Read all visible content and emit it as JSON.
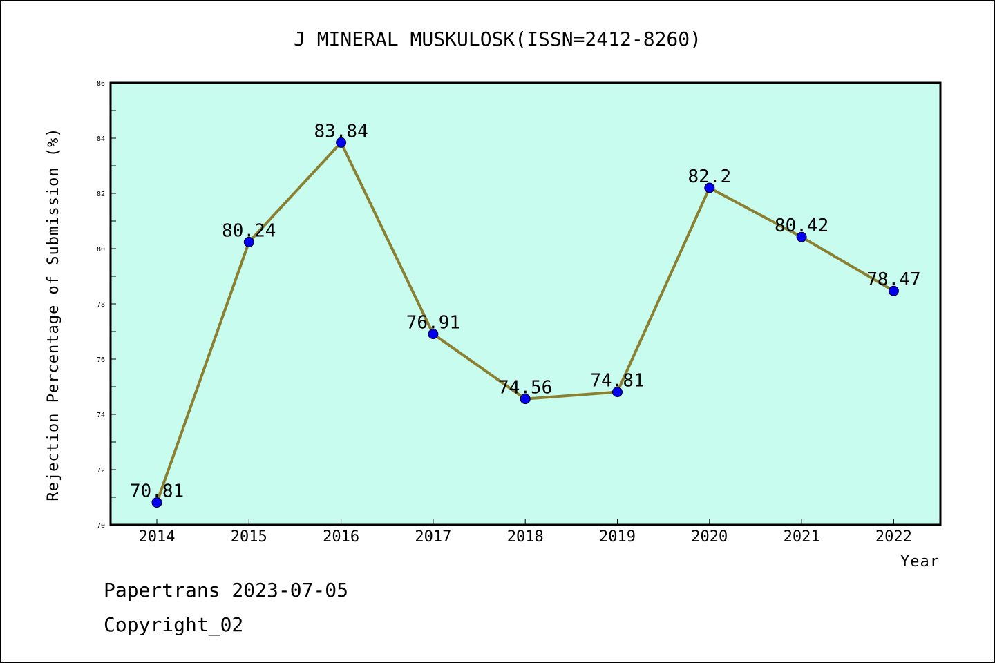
{
  "chart_data": {
    "type": "line",
    "title": "J MINERAL MUSKULOSK(ISSN=2412-8260)",
    "xlabel": "Year",
    "ylabel": "Rejection Percentage of Submission (%)",
    "categories": [
      "2014",
      "2015",
      "2016",
      "2017",
      "2018",
      "2019",
      "2020",
      "2021",
      "2022"
    ],
    "series": [
      {
        "values": [
          70.81,
          80.24,
          83.84,
          76.91,
          74.56,
          74.81,
          82.2,
          80.42,
          78.47
        ],
        "labels": [
          "70.81",
          "80.24",
          "83.84",
          "76.91",
          "74.56",
          "74.81",
          "82.2",
          "80.42",
          "78.47"
        ]
      }
    ],
    "ylim": [
      70,
      86
    ],
    "yticks": [
      "70",
      "72",
      "74",
      "76",
      "78",
      "80",
      "82",
      "84",
      "86"
    ],
    "grid": false,
    "colors": {
      "plot_background": "#c8fcee",
      "line": "#8b8032",
      "marker": "#0000ee"
    }
  },
  "footer": {
    "line1": "Papertrans 2023-07-05",
    "line2": "Copyright_02"
  }
}
